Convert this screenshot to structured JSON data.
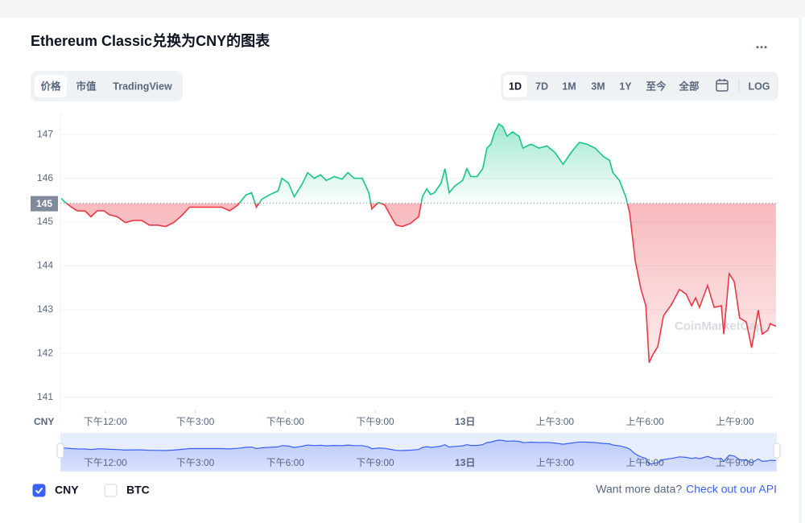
{
  "header": {
    "title": "Ethereum Classic兑换为CNY的图表",
    "menu": "..."
  },
  "tabs": [
    "价格",
    "市值",
    "TradingView"
  ],
  "active_tab": "价格",
  "ranges": [
    "1D",
    "7D",
    "1M",
    "3M",
    "1Y",
    "至今",
    "全部"
  ],
  "active_range": "1D",
  "log_label": "LOG",
  "chart_data": {
    "type": "line",
    "axis_label": "CNY",
    "watermark": "CoinMarketCap",
    "reference": {
      "value": 145.43,
      "label": "145"
    },
    "above_color": "#16c784",
    "below_color": "#ea3943",
    "navigator_color": "#3861fb",
    "grid": true,
    "xlim": [
      10.5,
      34.4
    ],
    "ylim": [
      140.7,
      147.5
    ],
    "yticks": [
      141,
      142,
      143,
      144,
      145,
      146,
      147
    ],
    "xticks": [
      {
        "value": 12,
        "label": "下午12:00"
      },
      {
        "value": 15,
        "label": "下午3:00"
      },
      {
        "value": 18,
        "label": "下午6:00"
      },
      {
        "value": 21,
        "label": "下午9:00"
      },
      {
        "value": 24,
        "label": "13日"
      },
      {
        "value": 27,
        "label": "上午3:00"
      },
      {
        "value": 30,
        "label": "上午6:00"
      },
      {
        "value": 33,
        "label": "上午9:00"
      }
    ],
    "x": [
      10.53,
      10.66,
      10.87,
      11.06,
      11.33,
      11.52,
      11.73,
      11.95,
      12.13,
      12.4,
      12.67,
      12.94,
      13.21,
      13.47,
      13.74,
      14.01,
      14.28,
      14.55,
      14.81,
      15.08,
      15.35,
      15.62,
      15.88,
      16.15,
      16.42,
      16.69,
      16.88,
      17.04,
      17.22,
      17.49,
      17.76,
      17.89,
      18.11,
      18.3,
      18.56,
      18.75,
      18.97,
      19.18,
      19.37,
      19.64,
      19.9,
      20.09,
      20.3,
      20.57,
      20.79,
      20.89,
      21.11,
      21.32,
      21.51,
      21.7,
      21.91,
      22.18,
      22.45,
      22.58,
      22.72,
      22.85,
      22.98,
      23.2,
      23.33,
      23.47,
      23.65,
      23.92,
      24.06,
      24.19,
      24.4,
      24.59,
      24.73,
      24.86,
      24.99,
      25.13,
      25.26,
      25.4,
      25.58,
      25.8,
      25.93,
      26.07,
      26.2,
      26.47,
      26.73,
      27.0,
      27.27,
      27.54,
      27.81,
      28.07,
      28.34,
      28.61,
      28.82,
      28.93,
      29.15,
      29.36,
      29.49,
      29.68,
      29.87,
      30.03,
      30.14,
      30.27,
      30.43,
      30.62,
      30.89,
      31.15,
      31.37,
      31.56,
      31.69,
      31.82,
      32.09,
      32.31,
      32.55,
      32.63,
      32.81,
      32.98,
      33.16,
      33.38,
      33.56,
      33.78,
      33.91,
      34.1,
      34.18,
      34.37
    ],
    "series": [
      {
        "name": "CNY",
        "values": [
          145.54,
          145.45,
          145.34,
          145.26,
          145.25,
          145.12,
          145.26,
          145.26,
          145.17,
          145.12,
          144.99,
          145.04,
          145.04,
          144.93,
          144.93,
          144.9,
          144.99,
          145.15,
          145.34,
          145.34,
          145.34,
          145.34,
          145.34,
          145.26,
          145.39,
          145.62,
          145.67,
          145.34,
          145.52,
          145.63,
          145.71,
          146.0,
          145.89,
          145.58,
          145.86,
          146.13,
          146.0,
          146.08,
          145.95,
          146.04,
          145.98,
          146.13,
          146.0,
          146.0,
          145.67,
          145.3,
          145.45,
          145.39,
          145.15,
          144.93,
          144.9,
          144.97,
          145.12,
          145.58,
          145.76,
          145.63,
          145.67,
          145.89,
          146.22,
          145.67,
          145.82,
          145.95,
          146.22,
          146.04,
          146.04,
          146.22,
          146.69,
          146.78,
          147.06,
          147.24,
          147.18,
          146.96,
          147.06,
          146.96,
          146.69,
          146.74,
          146.78,
          146.69,
          146.74,
          146.59,
          146.32,
          146.59,
          146.82,
          146.78,
          146.69,
          146.5,
          146.41,
          146.13,
          145.95,
          145.58,
          145.21,
          144.1,
          143.46,
          143.09,
          141.79,
          141.98,
          142.16,
          142.86,
          143.12,
          143.46,
          143.36,
          143.09,
          143.27,
          143.05,
          143.55,
          143.05,
          143.09,
          142.44,
          143.82,
          143.64,
          142.81,
          142.72,
          142.13,
          142.99,
          142.44,
          142.53,
          142.68,
          142.62
        ]
      }
    ]
  },
  "legend_options": [
    {
      "label": "CNY",
      "checked": true
    },
    {
      "label": "BTC",
      "checked": false
    }
  ],
  "footer": {
    "prompt": "Want more data?",
    "link": "Check out our API"
  }
}
